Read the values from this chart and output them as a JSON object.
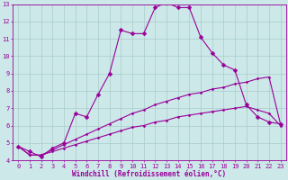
{
  "bg_color": "#cce8e8",
  "line_color": "#990099",
  "grid_color": "#aacccc",
  "xlim": [
    -0.5,
    23.5
  ],
  "ylim": [
    4,
    13
  ],
  "xticks": [
    0,
    1,
    2,
    3,
    4,
    5,
    6,
    7,
    8,
    9,
    10,
    11,
    12,
    13,
    14,
    15,
    16,
    17,
    18,
    19,
    20,
    21,
    22,
    23
  ],
  "yticks": [
    4,
    5,
    6,
    7,
    8,
    9,
    10,
    11,
    12,
    13
  ],
  "xlabel": "Windchill (Refroidissement éolien,°C)",
  "curve1_x": [
    0,
    1,
    2,
    3,
    4,
    5,
    6,
    7,
    8,
    9,
    10,
    11,
    12,
    13,
    14,
    15,
    16,
    17,
    18,
    19,
    20,
    21,
    22,
    23
  ],
  "curve1_y": [
    4.8,
    4.5,
    4.2,
    4.7,
    5.0,
    6.7,
    6.5,
    7.8,
    9.0,
    11.5,
    11.3,
    11.3,
    12.8,
    13.1,
    12.8,
    12.8,
    11.1,
    10.2,
    9.5,
    9.2,
    7.2,
    6.5,
    6.2,
    6.1
  ],
  "curve2_x": [
    0,
    1,
    2,
    3,
    4,
    5,
    6,
    7,
    8,
    9,
    10,
    11,
    12,
    13,
    14,
    15,
    16,
    17,
    18,
    19,
    20,
    21,
    22,
    23
  ],
  "curve2_y": [
    4.8,
    4.3,
    4.3,
    4.6,
    4.9,
    5.2,
    5.5,
    5.8,
    6.1,
    6.4,
    6.7,
    6.9,
    7.2,
    7.4,
    7.6,
    7.8,
    7.9,
    8.1,
    8.2,
    8.4,
    8.5,
    8.7,
    8.8,
    6.1
  ],
  "curve3_x": [
    0,
    1,
    2,
    3,
    4,
    5,
    6,
    7,
    8,
    9,
    10,
    11,
    12,
    13,
    14,
    15,
    16,
    17,
    18,
    19,
    20,
    21,
    22,
    23
  ],
  "curve3_y": [
    4.8,
    4.3,
    4.3,
    4.5,
    4.7,
    4.9,
    5.1,
    5.3,
    5.5,
    5.7,
    5.9,
    6.0,
    6.2,
    6.3,
    6.5,
    6.6,
    6.7,
    6.8,
    6.9,
    7.0,
    7.1,
    6.9,
    6.7,
    6.0
  ]
}
